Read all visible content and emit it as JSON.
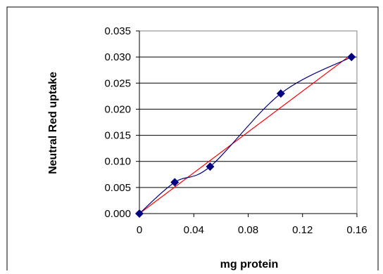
{
  "chart_data": {
    "type": "scatter",
    "title": "",
    "xlabel": "mg protein",
    "ylabel": "Neutral Red uptake",
    "xlim": [
      0,
      0.16
    ],
    "ylim": [
      0,
      0.035
    ],
    "x_ticks": [
      {
        "value": 0,
        "label": "0"
      },
      {
        "value": 0.04,
        "label": "0.04"
      },
      {
        "value": 0.08,
        "label": "0.08"
      },
      {
        "value": 0.12,
        "label": "0.12"
      },
      {
        "value": 0.16,
        "label": "0.16"
      }
    ],
    "y_ticks": [
      {
        "value": 0,
        "label": "0.000"
      },
      {
        "value": 0.005,
        "label": "0.005"
      },
      {
        "value": 0.01,
        "label": "0.010"
      },
      {
        "value": 0.015,
        "label": "0.015"
      },
      {
        "value": 0.02,
        "label": "0.020"
      },
      {
        "value": 0.025,
        "label": "0.025"
      },
      {
        "value": 0.03,
        "label": "0.030"
      },
      {
        "value": 0.035,
        "label": "0.035"
      }
    ],
    "grid": "horizontal",
    "legend": "none",
    "series": [
      {
        "x": [
          0,
          0.026,
          0.052,
          0.104,
          0.156
        ],
        "y": [
          0.0,
          0.006,
          0.009,
          0.023,
          0.03
        ],
        "marker": "diamond",
        "line": "smooth",
        "color": "#000080"
      }
    ],
    "trendline": {
      "type": "linear",
      "color": "#ff0000",
      "x": [
        0,
        0.156
      ],
      "y": [
        0.0,
        0.0305
      ]
    }
  }
}
